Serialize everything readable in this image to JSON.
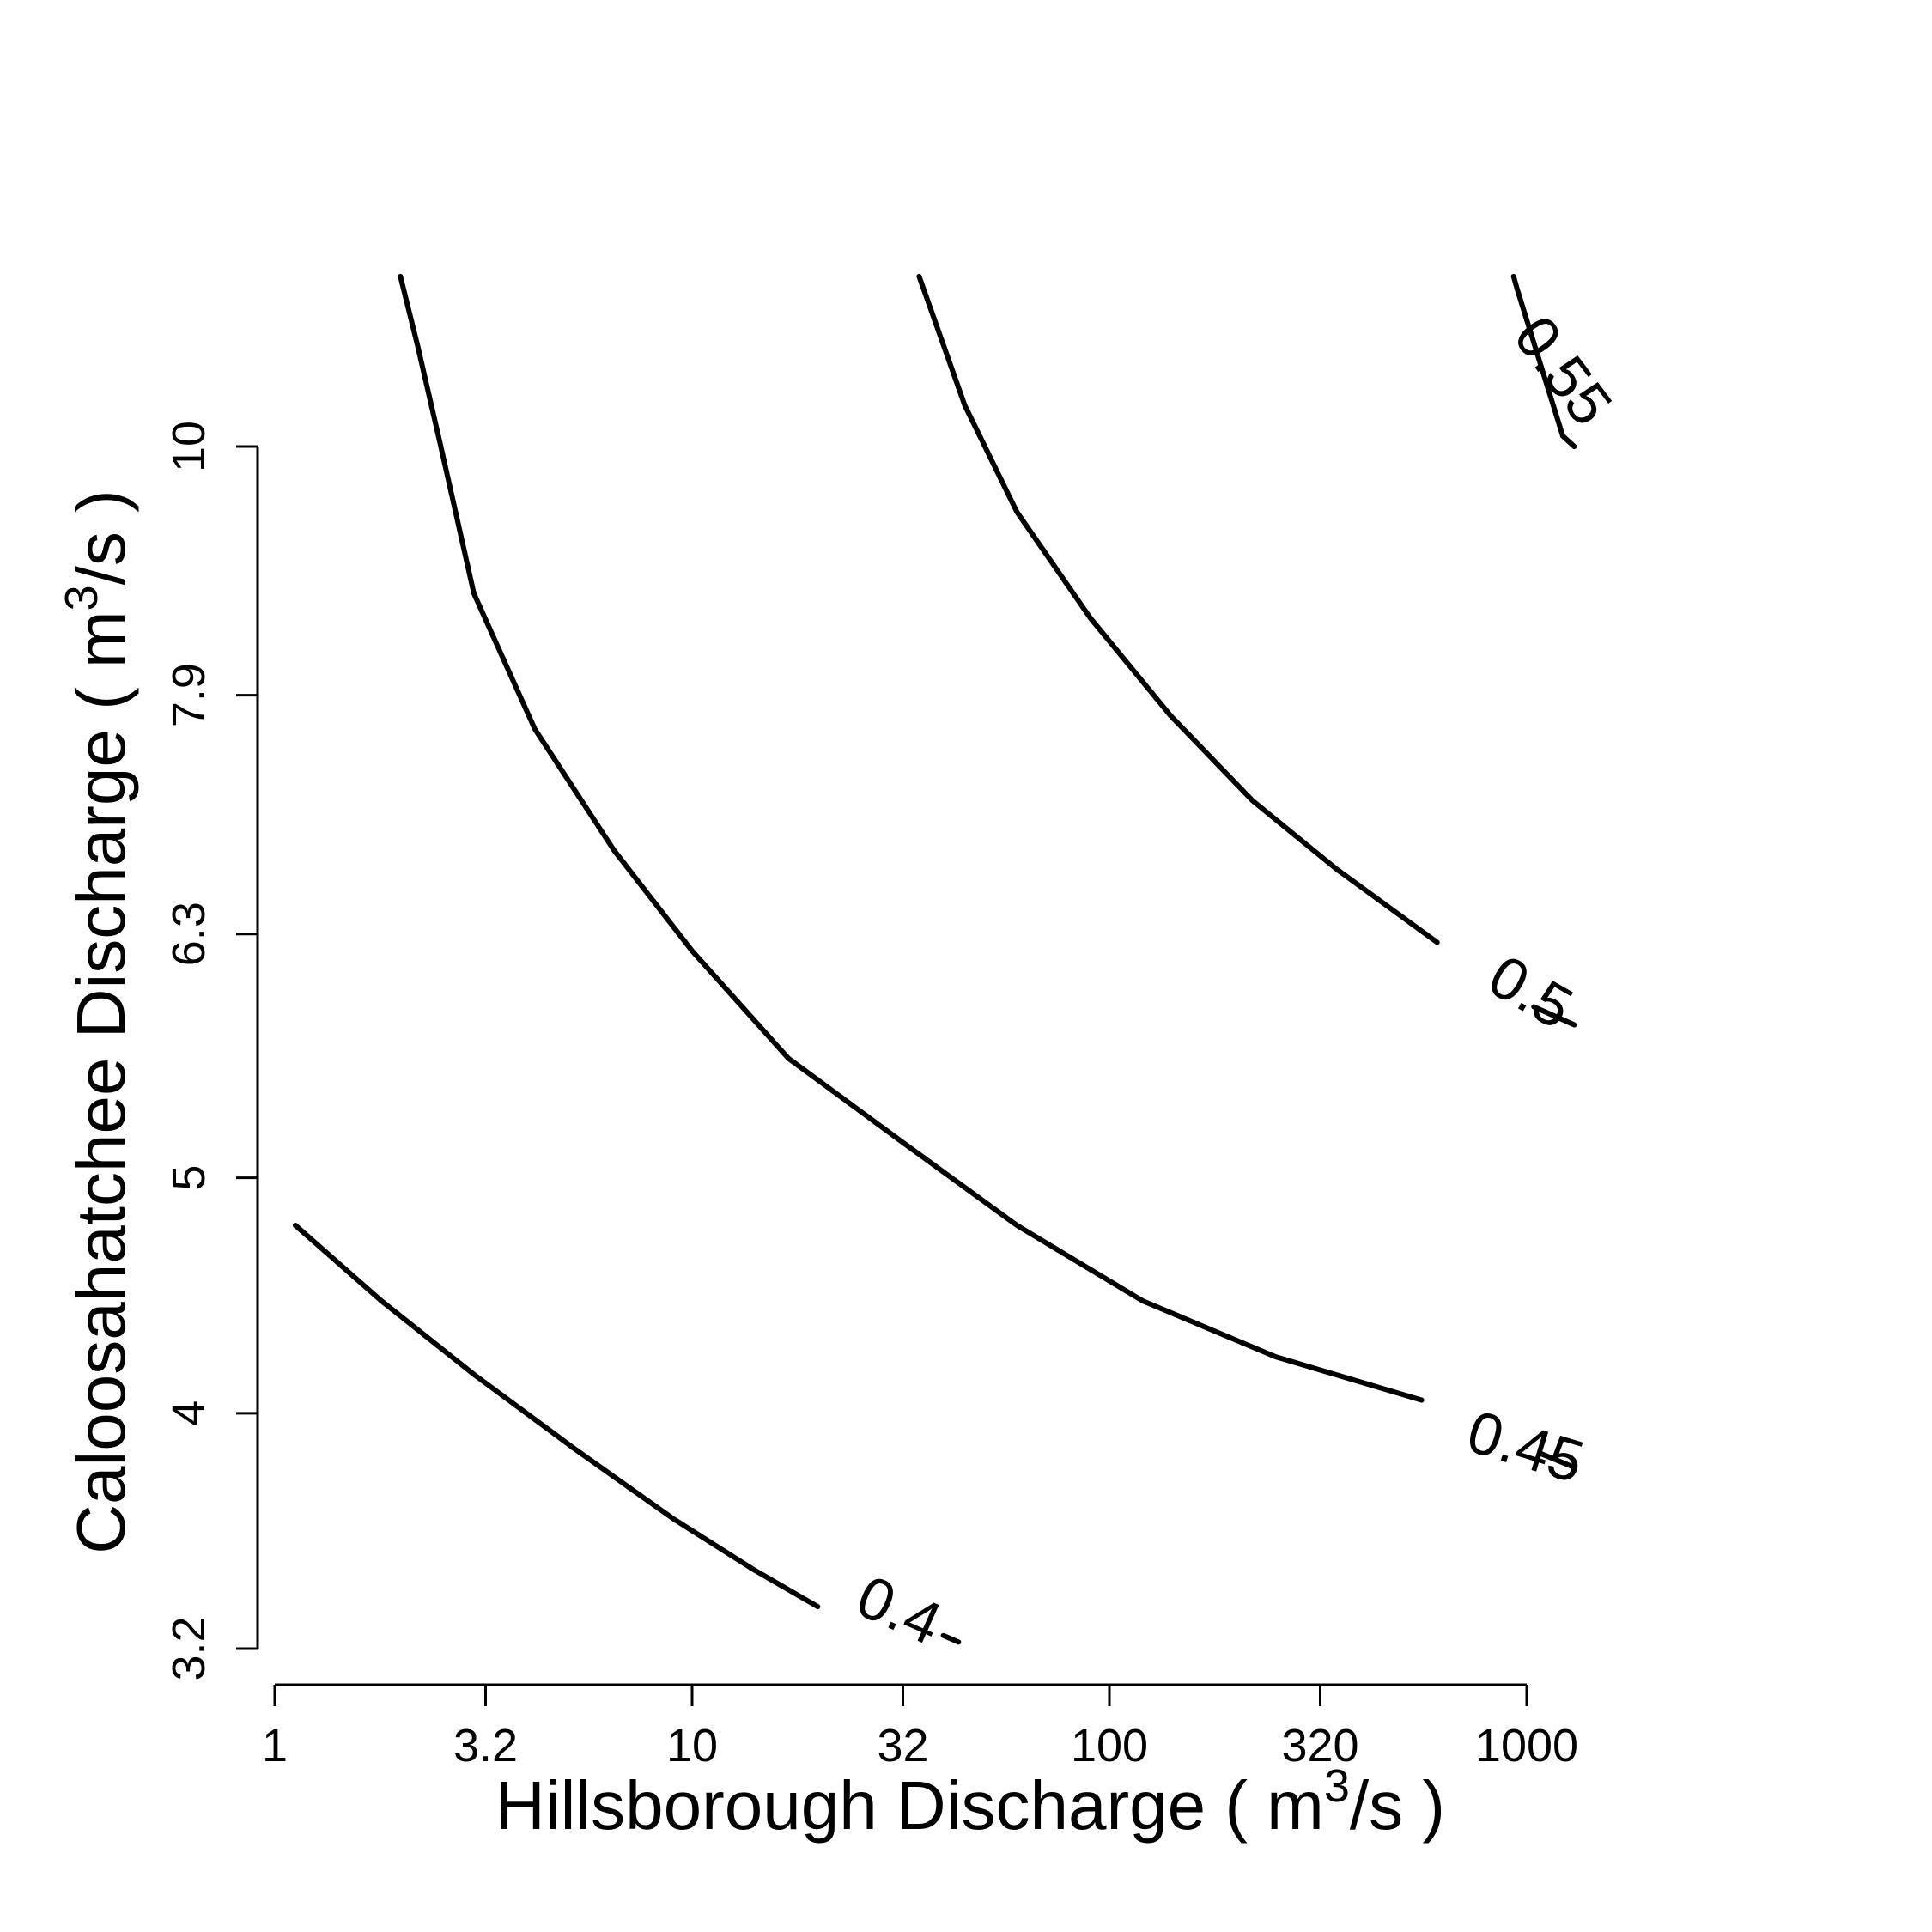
{
  "chart_data": {
    "type": "contour",
    "x_axis": {
      "label_prefix": "Hillsborough Discharge ( m",
      "label_sup": "3",
      "label_suffix": "/s )",
      "scale": "log",
      "range": [
        1,
        1000
      ],
      "ticks": [
        1,
        3.2,
        10,
        32,
        100,
        320,
        1000
      ],
      "tick_labels": [
        "1",
        "3.2",
        "10",
        "32",
        "100",
        "320",
        "1000"
      ]
    },
    "y_axis": {
      "label_prefix": "Caloosahatchee Discharge ( m",
      "label_sup": "3",
      "label_suffix": "/s )",
      "scale": "log",
      "range": [
        3.2,
        10
      ],
      "ticks": [
        3.2,
        4,
        5,
        6.3,
        7.9,
        10
      ],
      "tick_labels": [
        "3.2",
        "4",
        "5",
        "6.3",
        "7.9",
        "10"
      ]
    },
    "grid": false,
    "contours": [
      {
        "level": 0.4,
        "label": "0.4",
        "x": [
          1.12,
          1.8,
          3.0,
          5.2,
          9.0,
          14.0,
          20.0
        ],
        "y": [
          4.78,
          4.45,
          4.15,
          3.87,
          3.62,
          3.45,
          3.33
        ],
        "tail_x": [
          40.0,
          43.5
        ],
        "tail_y": [
          3.24,
          3.22
        ]
      },
      {
        "level": 0.45,
        "label": "0.45",
        "x": [
          2.0,
          2.2,
          2.5,
          3.0,
          4.2,
          6.5,
          10.0,
          17.0,
          32.0,
          60.0,
          120.0,
          250.0,
          560.0
        ],
        "y": [
          11.75,
          11.0,
          10.0,
          8.7,
          7.65,
          6.82,
          6.2,
          5.6,
          5.17,
          4.78,
          4.45,
          4.22,
          4.05
        ],
        "tail_x": [
          1080.0,
          1300.0
        ],
        "tail_y": [
          3.85,
          3.8
        ]
      },
      {
        "level": 0.5,
        "label": "0.5",
        "x": [
          35.0,
          45.0,
          60.0,
          90.0,
          140.0,
          220.0,
          350.0,
          610.0
        ],
        "y": [
          11.75,
          10.4,
          9.4,
          8.5,
          7.75,
          7.15,
          6.7,
          6.25
        ],
        "tail_x": [
          1040.0,
          1300.0
        ],
        "tail_y": [
          5.88,
          5.78
        ]
      },
      {
        "level": 0.55,
        "label": "0.55",
        "x": [],
        "y": [],
        "tail_x": [
          930.0,
          950.0,
          1220.0,
          1300.0
        ],
        "tail_y": [
          11.75,
          11.6,
          10.1,
          10.0
        ]
      }
    ]
  }
}
